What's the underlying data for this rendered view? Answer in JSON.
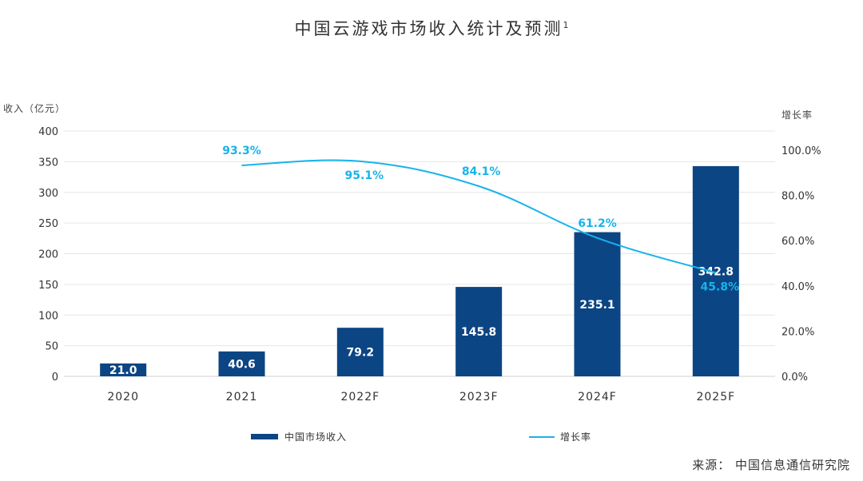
{
  "chart_data": {
    "type": "bar",
    "title": "中国云游戏市场收入统计及预测",
    "title_footnote": "1",
    "categories": [
      "2020",
      "2021",
      "2022F",
      "2023F",
      "2024F",
      "2025F"
    ],
    "ylabel": "收入（亿元）",
    "y2label": "增长率",
    "ylim": [
      0,
      400
    ],
    "y_ticks": [
      "400",
      "350",
      "300",
      "250",
      "200",
      "150",
      "100",
      "50",
      "0"
    ],
    "y2lim": [
      0,
      100
    ],
    "y2_ticks": [
      "100.0%",
      "80.0%",
      "60.0%",
      "40.0%",
      "20.0%",
      "0.0%"
    ],
    "series": [
      {
        "name": "中国市场收入",
        "kind": "bar",
        "values": [
          21.0,
          40.6,
          79.2,
          145.8,
          235.1,
          342.8
        ],
        "labels": [
          "21.0",
          "40.6",
          "79.2",
          "145.8",
          "235.1",
          "342.8"
        ]
      },
      {
        "name": "增长率",
        "kind": "line",
        "axis": "secondary",
        "values": [
          null,
          93.3,
          95.1,
          84.1,
          61.2,
          45.8
        ],
        "labels": [
          null,
          "93.3%",
          "95.1%",
          "84.1%",
          "61.2%",
          "45.8%"
        ]
      }
    ],
    "legend": [
      "中国市场收入",
      "增长率"
    ],
    "grid": true,
    "colors": {
      "bar": "#0c4584",
      "line": "#17b4ea",
      "grid": "#e6e6e6"
    }
  },
  "source": "来源：  中国信息通信研究院"
}
